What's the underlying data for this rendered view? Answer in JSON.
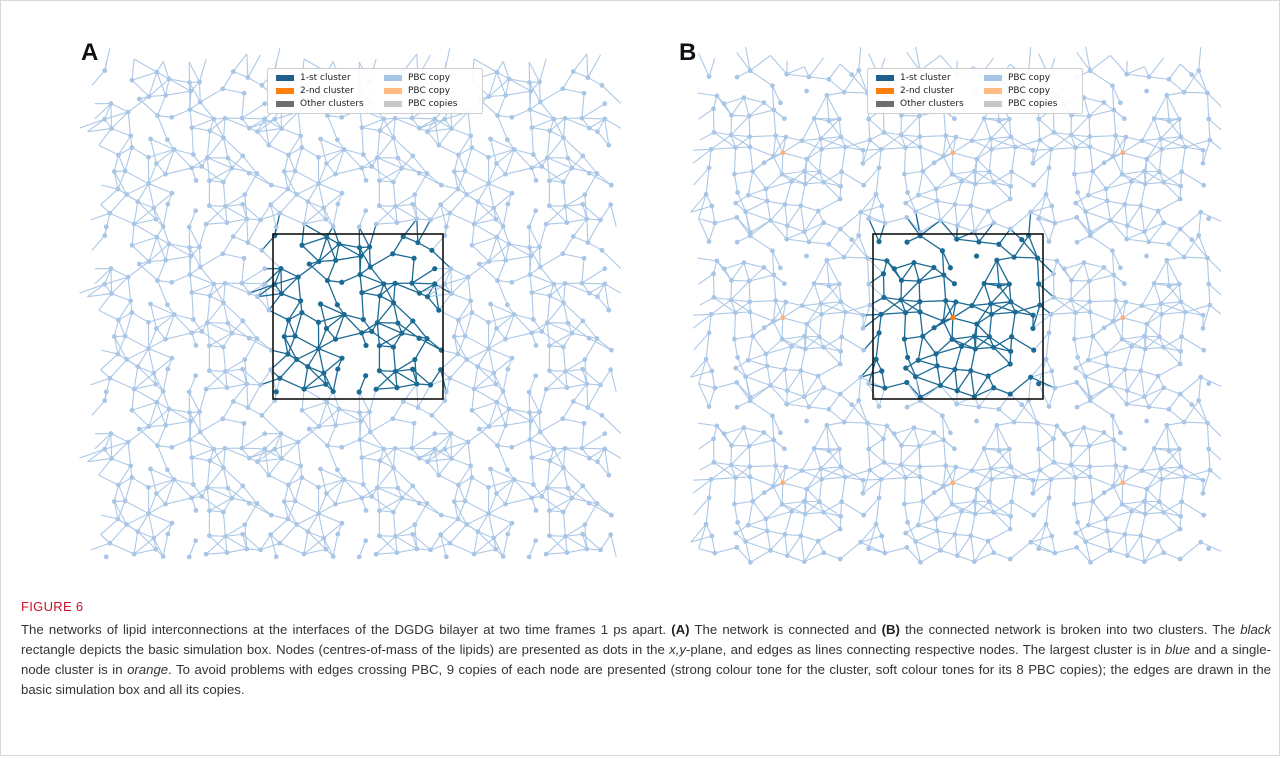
{
  "figure": {
    "label": "FIGURE 6",
    "caption_parts": [
      {
        "text": "The networks of lipid interconnections at the interfaces of the DGDG bilayer at two time frames 1 ps apart. ",
        "style": "normal"
      },
      {
        "text": "(A)",
        "style": "bold"
      },
      {
        "text": " The network is connected and ",
        "style": "normal"
      },
      {
        "text": "(B)",
        "style": "bold"
      },
      {
        "text": " the connected network is broken into two clusters. The ",
        "style": "normal"
      },
      {
        "text": "black",
        "style": "italic"
      },
      {
        "text": " rectangle depicts the basic simulation box. Nodes (centres-of-mass of the lipids) are presented as dots in the ",
        "style": "normal"
      },
      {
        "text": "x,y",
        "style": "italic"
      },
      {
        "text": "-plane, and edges as lines connecting respective nodes. The largest cluster is in ",
        "style": "normal"
      },
      {
        "text": "blue",
        "style": "italic"
      },
      {
        "text": " and a single-node cluster is in ",
        "style": "normal"
      },
      {
        "text": "orange",
        "style": "italic"
      },
      {
        "text": ". To avoid problems with edges crossing PBC, 9 copies of each node are presented (strong colour tone for the cluster, soft colour tones for its 8 PBC copies); the edges are drawn in the basic simulation box and all its copies.",
        "style": "normal"
      }
    ]
  },
  "panels": [
    {
      "letter": "A"
    },
    {
      "letter": "B"
    }
  ],
  "legend": {
    "items": [
      {
        "label": "1-st cluster",
        "color": "#1f5f8b"
      },
      {
        "label": "PBC copy",
        "color": "#a6c4e4"
      },
      {
        "label": "2-nd cluster",
        "color": "#ff7f0e"
      },
      {
        "label": "PBC copy",
        "color": "#ffbb82"
      },
      {
        "label": "Other clusters",
        "color": "#6e6e6e"
      },
      {
        "label": "PBC copies",
        "color": "#c7c7c7"
      }
    ]
  },
  "colors": {
    "strong_cluster": "#1a6a94",
    "pbc_copy": "#a9c6e6",
    "second_cluster": "#ff7f0e",
    "second_cluster_copy": "#ffb07a",
    "box": "#111111"
  }
}
